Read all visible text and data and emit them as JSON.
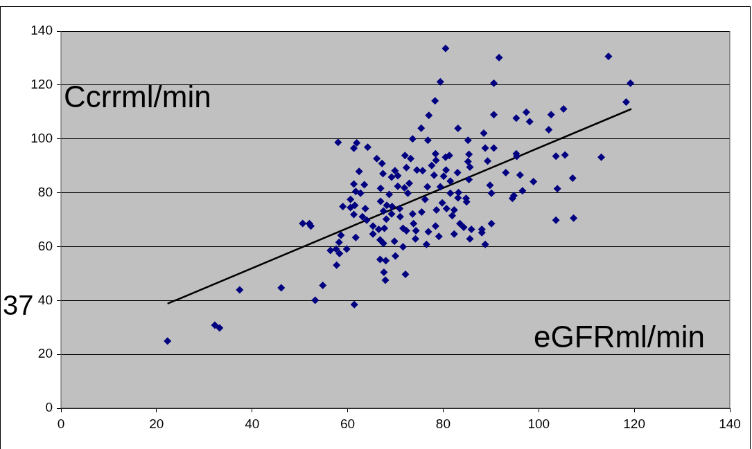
{
  "chart_data": {
    "type": "scatter",
    "xlabel": "eGFRml/min",
    "ylabel": "Ccrrml/min",
    "annotations": [
      "37"
    ],
    "xlim": [
      0,
      140
    ],
    "ylim": [
      0,
      140
    ],
    "xticks": [
      0,
      20,
      40,
      60,
      80,
      100,
      120,
      140
    ],
    "yticks": [
      0,
      20,
      40,
      60,
      80,
      100,
      120,
      140
    ],
    "grid": "y",
    "series": [
      {
        "marker": "diamond",
        "color": "#000080",
        "x": [
          22.3,
          32.2,
          33.2,
          37.4,
          46.1,
          50.6,
          52.0,
          52.3,
          53.2,
          54.8,
          56.4,
          57.6,
          59.8,
          58.3,
          57.7,
          58.2,
          58.6,
          61.7,
          59.0,
          60.6,
          61.5,
          60.6,
          61.3,
          61.7,
          62.7,
          61.3,
          63.5,
          62.4,
          58.0,
          61.9,
          61.3,
          64.2,
          61.4,
          63.7,
          63.1,
          64.0,
          65.3,
          65.3,
          66.5,
          67.7,
          66.9,
          66.9,
          68.2,
          69.3,
          67.5,
          69.2,
          68.1,
          68.7,
          66.1,
          67.2,
          67.4,
          69.9,
          69.2,
          70.5,
          70.5,
          71.9,
          72.9,
          72.6,
          72.3,
          72.0,
          73.2,
          73.6,
          76.8,
          70.9,
          71.0,
          66.8,
          67.5,
          69.8,
          71.6,
          72.3,
          73.8,
          74.3,
          73.6,
          75.5,
          76.2,
          74.2,
          71.6,
          76.5,
          70.0,
          66.8,
          68.0,
          67.6,
          72.1,
          67.9,
          74.5,
          75.7,
          78.1,
          76.7,
          76.9,
          78.4,
          79.1,
          78.6,
          78.4,
          78.5,
          77.6,
          80.5,
          81.3,
          85.2,
          88.5,
          88.8,
          90.6,
          85.4,
          95.3,
          95.4,
          103.6,
          105.5,
          113.1,
          85.2,
          85.6,
          89.3,
          80.6,
          83.0,
          93.1,
          96.1,
          85.4,
          98.9,
          107.1,
          80.1,
          81.5,
          79.4,
          89.8,
          90.1,
          103.9,
          96.6,
          94.8,
          94.5,
          81.5,
          83.2,
          83.1,
          84.8,
          84.9,
          79.8,
          80.7,
          82.3,
          81.9,
          103.6,
          107.3,
          90.1,
          83.5,
          84.3,
          85.9,
          88.1,
          88.1,
          82.3,
          85.6,
          88.8,
          80.5,
          91.7,
          114.6,
          90.6,
          119.2,
          118.3,
          90.6,
          95.3,
          97.4,
          98.1,
          102.6,
          105.2,
          83.1,
          102.1,
          79.4,
          78.3,
          77.0,
          75.4
        ],
        "values": [
          24.9,
          30.8,
          29.8,
          43.9,
          44.7,
          68.6,
          68.5,
          67.6,
          40.1,
          45.6,
          58.6,
          59.1,
          59.1,
          57.4,
          53.1,
          61.6,
          64.2,
          63.4,
          74.9,
          74.5,
          75.3,
          77.5,
          71.9,
          80.5,
          79.8,
          83.2,
          83.0,
          87.9,
          98.7,
          98.5,
          96.5,
          96.9,
          38.5,
          74.1,
          71.1,
          69.8,
          67.6,
          64.7,
          66.4,
          66.8,
          76.8,
          81.6,
          75.3,
          74.9,
          73.2,
          72.1,
          70.2,
          79.4,
          92.7,
          90.9,
          87.1,
          88.2,
          85.8,
          86.3,
          82.4,
          81.8,
          83.5,
          79.8,
          89.3,
          93.8,
          92.7,
          100.0,
          99.5,
          74.1,
          71.1,
          62.5,
          61.2,
          62.0,
          66.8,
          65.9,
          68.5,
          65.9,
          72.1,
          72.8,
          77.5,
          62.9,
          59.9,
          60.8,
          56.5,
          55.2,
          54.8,
          50.5,
          49.7,
          47.5,
          88.4,
          88.2,
          86.5,
          82.2,
          65.5,
          67.6,
          63.8,
          73.6,
          94.5,
          92.0,
          90.1,
          93.2,
          93.8,
          99.5,
          102.1,
          96.6,
          96.6,
          94.3,
          94.5,
          93.5,
          93.6,
          94.0,
          93.2,
          91.6,
          89.5,
          91.8,
          88.4,
          87.5,
          87.5,
          86.6,
          84.9,
          84.1,
          85.4,
          86.1,
          84.3,
          82.2,
          82.8,
          79.8,
          81.5,
          80.7,
          78.9,
          77.9,
          79.8,
          80.1,
          78.1,
          77.9,
          76.6,
          76.2,
          74.1,
          73.6,
          71.5,
          69.8,
          70.6,
          68.5,
          68.5,
          67.2,
          66.4,
          66.4,
          65.2,
          64.7,
          62.9,
          60.8,
          133.6,
          130.2,
          130.6,
          120.7,
          120.7,
          113.7,
          109.0,
          107.7,
          109.9,
          106.4,
          109.0,
          111.1,
          103.9,
          103.4,
          121.2,
          114.1,
          108.7,
          104.0
        ]
      },
      {
        "type": "line",
        "marker": "none",
        "color": "#000000",
        "x": [
          22.3,
          119.4
        ],
        "values": [
          38.8,
          111.1
        ]
      }
    ]
  }
}
